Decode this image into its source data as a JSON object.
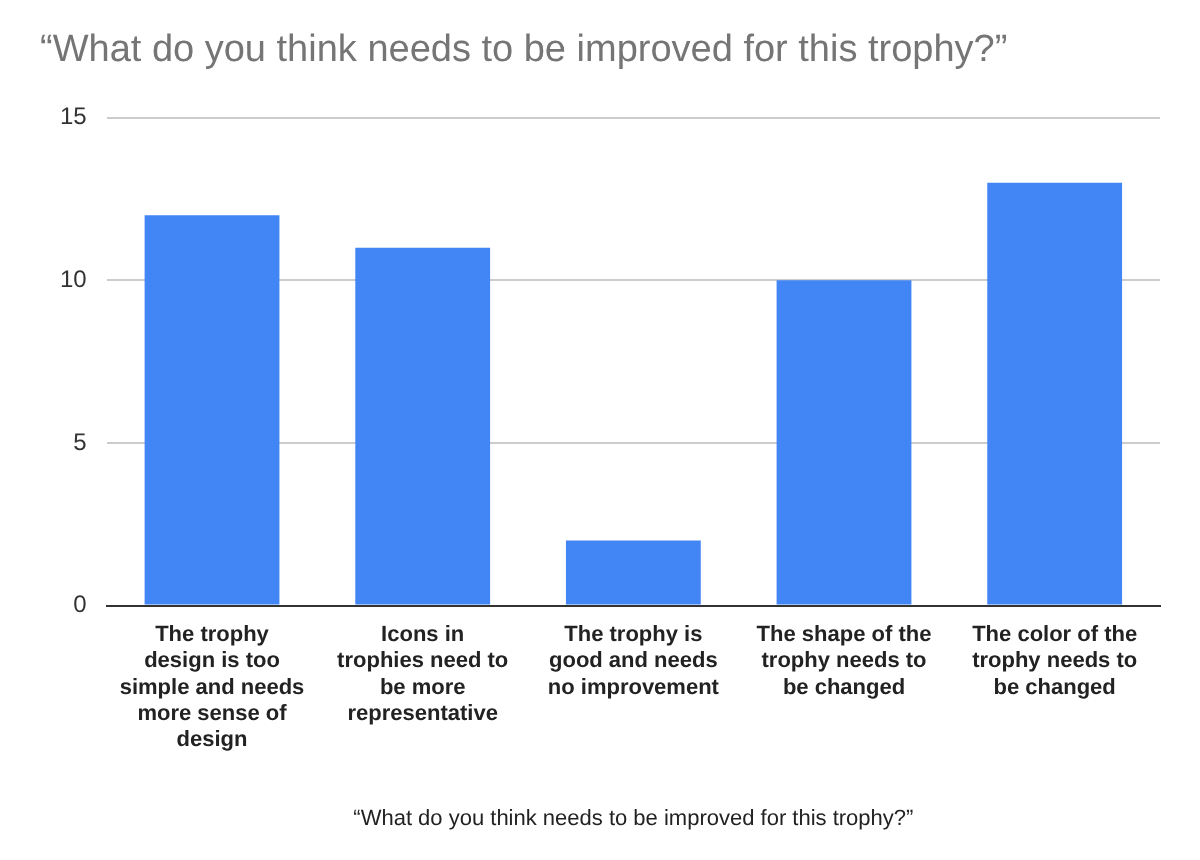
{
  "chart_data": {
    "type": "bar",
    "title": "“What do you think needs to be improved for this trophy?”",
    "xlabel": "“What do you think needs to be improved for this trophy?”",
    "categories": [
      "The trophy design is too simple and needs more sense of design",
      "Icons in trophies need to be more representative",
      "The trophy is good and needs no improvement",
      "The shape of the trophy needs to be changed",
      "The color of the trophy needs to be changed"
    ],
    "values": [
      12,
      11,
      2,
      10,
      13
    ],
    "color": "#4285f4",
    "ylim": [
      0,
      15
    ],
    "yticks": [
      0,
      5,
      10,
      15
    ],
    "grid": "y",
    "legend": false
  }
}
